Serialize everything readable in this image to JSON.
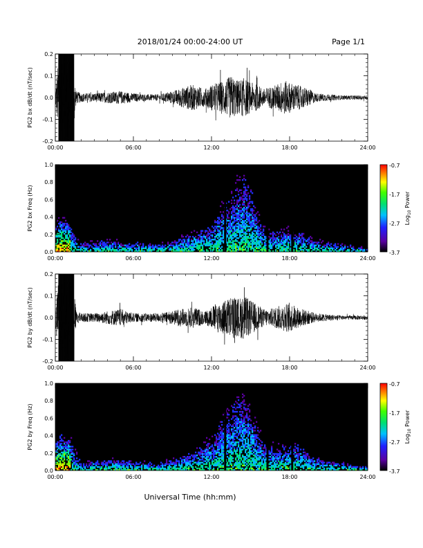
{
  "header": {
    "title": "2018/01/24  00:00-24:00 UT",
    "page": "Page 1/1"
  },
  "xaxis": {
    "label": "Universal Time (hh:mm)",
    "ticks": [
      "00:00",
      "06:00",
      "12:00",
      "18:00",
      "24:00"
    ],
    "range_hours": [
      0,
      24
    ]
  },
  "colors": {
    "background": "#ffffff",
    "waveform": "#000000",
    "spectrogram_bg": "#000000"
  },
  "chart_data": [
    {
      "type": "line",
      "ylabel": "PG2 bx dB/dt (nT/sec)",
      "ylim": [
        -0.2,
        0.2
      ],
      "yticks": [
        "-0.2",
        "-0.1",
        "0.0",
        "0.1",
        "0.2"
      ],
      "xlim_hours": [
        0,
        24
      ],
      "envelope": {
        "x_hours": [
          0.0,
          0.3,
          0.6,
          1.0,
          1.3,
          1.6,
          2,
          3,
          4,
          5,
          6,
          7,
          8,
          9,
          9.5,
          10,
          10.5,
          11,
          11.5,
          12,
          12.5,
          13,
          13.5,
          14,
          14.5,
          15,
          15.5,
          16,
          16.5,
          17,
          17.5,
          18,
          18.5,
          19,
          19.5,
          20,
          21,
          22,
          23,
          24
        ],
        "amplitude": [
          0.03,
          0.2,
          0.2,
          0.2,
          0.2,
          0.03,
          0.02,
          0.02,
          0.025,
          0.03,
          0.02,
          0.015,
          0.015,
          0.03,
          0.04,
          0.05,
          0.06,
          0.05,
          0.04,
          0.06,
          0.07,
          0.08,
          0.1,
          0.08,
          0.09,
          0.07,
          0.06,
          0.04,
          0.05,
          0.06,
          0.08,
          0.07,
          0.06,
          0.05,
          0.04,
          0.02,
          0.015,
          0.01,
          0.01,
          0.01
        ]
      }
    },
    {
      "type": "heatmap",
      "ylabel": "PG2 bx Freq (Hz)",
      "ylim": [
        0,
        1
      ],
      "yticks": [
        "0.0",
        "0.2",
        "0.4",
        "0.6",
        "0.8",
        "1.0"
      ],
      "xlim_hours": [
        0,
        24
      ],
      "colorbar": {
        "label": "Log10 Power",
        "label_base": "Log",
        "label_sub": "10",
        "label_rest": " Power",
        "range": [
          -3.7,
          -0.7
        ],
        "ticks": [
          "-0.7",
          "-1.7",
          "-2.7",
          "-3.7"
        ]
      },
      "activity": {
        "x_hours": [
          0,
          0.5,
          1,
          1.5,
          2,
          4,
          6,
          8,
          10,
          12,
          12.5,
          13,
          13.5,
          14,
          14.5,
          15,
          15.5,
          16,
          17,
          18,
          19,
          20,
          22,
          24
        ],
        "max_freq_hz": [
          0.35,
          0.55,
          0.45,
          0.2,
          0.1,
          0.15,
          0.12,
          0.1,
          0.2,
          0.35,
          0.5,
          0.6,
          0.7,
          0.85,
          0.95,
          0.8,
          0.5,
          0.3,
          0.25,
          0.3,
          0.25,
          0.15,
          0.1,
          0.05
        ]
      },
      "gaps_hours": [
        13.05,
        16.3,
        18.2
      ]
    },
    {
      "type": "line",
      "ylabel": "PG2 by dB/dt (nT/sec)",
      "ylim": [
        -0.2,
        0.2
      ],
      "yticks": [
        "-0.2",
        "-0.1",
        "0.0",
        "0.1",
        "0.2"
      ],
      "xlim_hours": [
        0,
        24
      ],
      "envelope": {
        "x_hours": [
          0.0,
          0.3,
          0.6,
          1.0,
          1.3,
          1.6,
          2,
          3,
          4,
          5,
          6,
          7,
          8,
          9,
          9.5,
          10,
          10.5,
          11,
          11.5,
          12,
          12.5,
          13,
          13.5,
          14,
          14.5,
          15,
          15.5,
          16,
          16.5,
          17,
          17.5,
          18,
          18.5,
          19,
          19.5,
          20,
          21,
          22,
          23,
          24
        ],
        "amplitude": [
          0.03,
          0.2,
          0.2,
          0.2,
          0.2,
          0.03,
          0.02,
          0.02,
          0.03,
          0.04,
          0.02,
          0.02,
          0.02,
          0.03,
          0.04,
          0.04,
          0.05,
          0.04,
          0.03,
          0.05,
          0.07,
          0.08,
          0.1,
          0.09,
          0.1,
          0.08,
          0.06,
          0.04,
          0.04,
          0.05,
          0.06,
          0.07,
          0.05,
          0.04,
          0.03,
          0.02,
          0.015,
          0.01,
          0.01,
          0.01
        ]
      }
    },
    {
      "type": "heatmap",
      "ylabel": "PG2 by Freq (Hz)",
      "ylim": [
        0,
        1
      ],
      "yticks": [
        "0.0",
        "0.2",
        "0.4",
        "0.6",
        "0.8",
        "1.0"
      ],
      "xlim_hours": [
        0,
        24
      ],
      "colorbar": {
        "label": "Log10 Power",
        "label_base": "Log",
        "label_sub": "10",
        "label_rest": " Power",
        "range": [
          -3.7,
          -0.7
        ],
        "ticks": [
          "-0.7",
          "-1.7",
          "-2.7",
          "-3.7"
        ]
      },
      "activity": {
        "x_hours": [
          0,
          0.5,
          1,
          1.5,
          2,
          4,
          6,
          8,
          10,
          12,
          12.5,
          13,
          13.5,
          14,
          14.5,
          15,
          15.5,
          16,
          17,
          18,
          19,
          20,
          22,
          24
        ],
        "max_freq_hz": [
          0.4,
          0.6,
          0.5,
          0.25,
          0.1,
          0.15,
          0.12,
          0.1,
          0.2,
          0.4,
          0.55,
          0.7,
          0.8,
          0.9,
          0.95,
          0.8,
          0.55,
          0.35,
          0.3,
          0.35,
          0.3,
          0.15,
          0.1,
          0.05
        ]
      },
      "gaps_hours": [
        13.05,
        16.3,
        18.2
      ]
    }
  ]
}
